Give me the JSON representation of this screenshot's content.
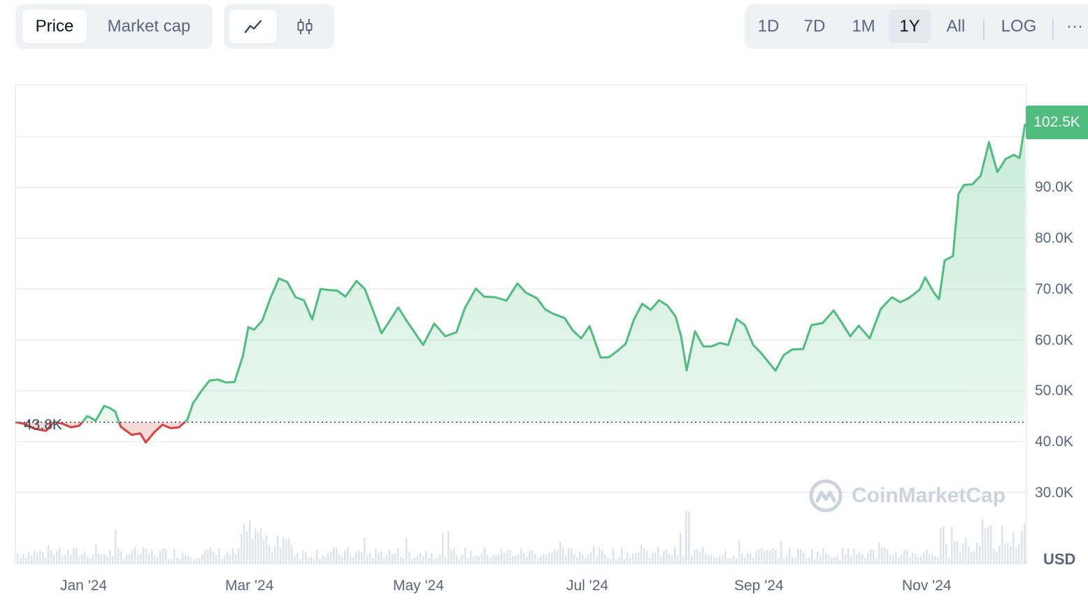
{
  "toolbar": {
    "metric_tabs": [
      "Price",
      "Market cap"
    ],
    "active_metric": "Price",
    "chart_type_icons": [
      "line-chart-icon",
      "candlestick-icon"
    ],
    "range_buttons": [
      "1D",
      "7D",
      "1M",
      "1Y",
      "All"
    ],
    "active_range": "1Y",
    "log_label": "LOG",
    "more_label": "···"
  },
  "colors": {
    "up": "#4ebd7d",
    "down": "#d83f3f",
    "up_fill": "#e8f6ee",
    "down_fill": "#f6d9d9",
    "volume": "#dfe3ea"
  },
  "watermark": "CoinMarketCap",
  "currency_label": "USD",
  "chart_data": {
    "type": "area",
    "y_ticks": [
      "30.0K",
      "40.0K",
      "50.0K",
      "60.0K",
      "70.0K",
      "80.0K",
      "90.0K"
    ],
    "x_ticks": [
      "Jan '24",
      "Mar '24",
      "May '24",
      "Jul '24",
      "Sep '24",
      "Nov '24"
    ],
    "ylim": [
      20000,
      110000
    ],
    "baseline_value": 43800,
    "baseline_label": "43.8K",
    "current_label": "102.5K",
    "grid": true,
    "series": [
      {
        "points": [
          [
            "2023-12-07",
            43800
          ],
          [
            "2023-12-10",
            43500
          ],
          [
            "2023-12-14",
            42500
          ],
          [
            "2023-12-18",
            42100
          ],
          [
            "2023-12-21",
            43900
          ],
          [
            "2023-12-24",
            43500
          ],
          [
            "2023-12-27",
            42800
          ],
          [
            "2023-12-30",
            43100
          ],
          [
            "2024-01-02",
            45000
          ],
          [
            "2024-01-05",
            44100
          ],
          [
            "2024-01-08",
            47000
          ],
          [
            "2024-01-10",
            46600
          ],
          [
            "2024-01-12",
            45900
          ],
          [
            "2024-01-14",
            42900
          ],
          [
            "2024-01-18",
            41300
          ],
          [
            "2024-01-21",
            41600
          ],
          [
            "2024-01-23",
            39800
          ],
          [
            "2024-01-26",
            41800
          ],
          [
            "2024-01-29",
            43300
          ],
          [
            "2024-02-01",
            42600
          ],
          [
            "2024-02-04",
            42800
          ],
          [
            "2024-02-07",
            44300
          ],
          [
            "2024-02-09",
            47500
          ],
          [
            "2024-02-12",
            49900
          ],
          [
            "2024-02-15",
            52000
          ],
          [
            "2024-02-18",
            52200
          ],
          [
            "2024-02-21",
            51600
          ],
          [
            "2024-02-24",
            51700
          ],
          [
            "2024-02-27",
            56800
          ],
          [
            "2024-02-29",
            62500
          ],
          [
            "2024-03-02",
            62000
          ],
          [
            "2024-03-05",
            63800
          ],
          [
            "2024-03-08",
            68300
          ],
          [
            "2024-03-11",
            72100
          ],
          [
            "2024-03-14",
            71400
          ],
          [
            "2024-03-17",
            68400
          ],
          [
            "2024-03-20",
            67800
          ],
          [
            "2024-03-23",
            64000
          ],
          [
            "2024-03-26",
            70000
          ],
          [
            "2024-03-29",
            69800
          ],
          [
            "2024-04-01",
            69700
          ],
          [
            "2024-04-04",
            68500
          ],
          [
            "2024-04-08",
            71600
          ],
          [
            "2024-04-11",
            70000
          ],
          [
            "2024-04-14",
            65700
          ],
          [
            "2024-04-17",
            61300
          ],
          [
            "2024-04-20",
            63800
          ],
          [
            "2024-04-23",
            66400
          ],
          [
            "2024-04-26",
            63800
          ],
          [
            "2024-04-30",
            60600
          ],
          [
            "2024-05-02",
            59000
          ],
          [
            "2024-05-06",
            63200
          ],
          [
            "2024-05-10",
            60700
          ],
          [
            "2024-05-14",
            61500
          ],
          [
            "2024-05-17",
            66200
          ],
          [
            "2024-05-21",
            70100
          ],
          [
            "2024-05-24",
            68500
          ],
          [
            "2024-05-28",
            68400
          ],
          [
            "2024-06-01",
            67700
          ],
          [
            "2024-06-05",
            71100
          ],
          [
            "2024-06-08",
            69300
          ],
          [
            "2024-06-12",
            68200
          ],
          [
            "2024-06-15",
            66000
          ],
          [
            "2024-06-18",
            65100
          ],
          [
            "2024-06-22",
            64300
          ],
          [
            "2024-06-25",
            61800
          ],
          [
            "2024-06-28",
            60300
          ],
          [
            "2024-07-01",
            62700
          ],
          [
            "2024-07-05",
            56500
          ],
          [
            "2024-07-08",
            56600
          ],
          [
            "2024-07-11",
            57800
          ],
          [
            "2024-07-14",
            59200
          ],
          [
            "2024-07-17",
            64000
          ],
          [
            "2024-07-20",
            67100
          ],
          [
            "2024-07-23",
            65900
          ],
          [
            "2024-07-26",
            67800
          ],
          [
            "2024-07-29",
            66800
          ],
          [
            "2024-08-01",
            64600
          ],
          [
            "2024-08-03",
            60700
          ],
          [
            "2024-08-05",
            54000
          ],
          [
            "2024-08-08",
            61700
          ],
          [
            "2024-08-11",
            58700
          ],
          [
            "2024-08-14",
            58700
          ],
          [
            "2024-08-17",
            59400
          ],
          [
            "2024-08-20",
            59000
          ],
          [
            "2024-08-23",
            64100
          ],
          [
            "2024-08-26",
            62900
          ],
          [
            "2024-08-29",
            59000
          ],
          [
            "2024-09-01",
            57300
          ],
          [
            "2024-09-06",
            53950
          ],
          [
            "2024-09-09",
            57000
          ],
          [
            "2024-09-12",
            58100
          ],
          [
            "2024-09-16",
            58200
          ],
          [
            "2024-09-19",
            62900
          ],
          [
            "2024-09-23",
            63300
          ],
          [
            "2024-09-27",
            65800
          ],
          [
            "2024-09-30",
            63300
          ],
          [
            "2024-10-03",
            60700
          ],
          [
            "2024-10-06",
            62800
          ],
          [
            "2024-10-10",
            60300
          ],
          [
            "2024-10-14",
            66100
          ],
          [
            "2024-10-18",
            68400
          ],
          [
            "2024-10-21",
            67400
          ],
          [
            "2024-10-24",
            68200
          ],
          [
            "2024-10-28",
            69900
          ],
          [
            "2024-10-30",
            72300
          ],
          [
            "2024-11-02",
            69400
          ],
          [
            "2024-11-04",
            68000
          ],
          [
            "2024-11-06",
            75600
          ],
          [
            "2024-11-09",
            76500
          ],
          [
            "2024-11-11",
            88700
          ],
          [
            "2024-11-13",
            90500
          ],
          [
            "2024-11-16",
            90600
          ],
          [
            "2024-11-19",
            92300
          ],
          [
            "2024-11-22",
            98900
          ],
          [
            "2024-11-25",
            93000
          ],
          [
            "2024-11-28",
            95600
          ],
          [
            "2024-12-01",
            96400
          ],
          [
            "2024-12-03",
            95800
          ],
          [
            "2024-12-05",
            102500
          ]
        ]
      }
    ]
  }
}
